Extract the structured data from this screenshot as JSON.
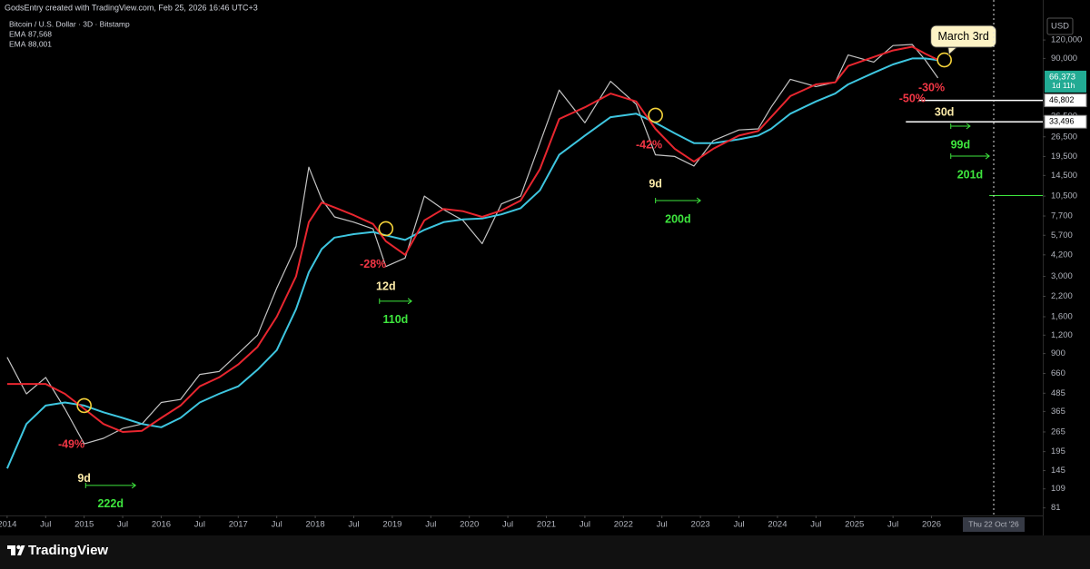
{
  "header": {
    "credit": "GodsEntry created with TradingView.com, Feb 25, 2026 16:46 UTC+3",
    "symbol": "Bitcoin / U.S. Dollar · 3D · Bitstamp",
    "currency": "USD",
    "brand": "TradingView"
  },
  "chart_data": {
    "type": "line",
    "log_scale": true,
    "grid": false,
    "xlim": [
      "2013-11-28",
      "2027-06-11"
    ],
    "ylim": [
      72,
      224000
    ],
    "x": [
      "2014-01",
      "2014-04",
      "2014-07",
      "2014-10",
      "2015-01",
      "2015-04",
      "2015-07",
      "2015-10",
      "2016-01",
      "2016-04",
      "2016-07",
      "2016-10",
      "2017-01",
      "2017-04",
      "2017-07",
      "2017-10",
      "2017-12",
      "2018-02",
      "2018-04",
      "2018-07",
      "2018-10",
      "2018-12",
      "2019-03",
      "2019-06",
      "2019-09",
      "2019-12",
      "2020-03",
      "2020-06",
      "2020-09",
      "2020-12",
      "2021-03",
      "2021-07",
      "2021-11",
      "2022-03",
      "2022-06",
      "2022-09",
      "2022-12",
      "2023-03",
      "2023-07",
      "2023-10",
      "2023-12",
      "2024-03",
      "2024-07",
      "2024-10",
      "2024-12",
      "2025-04",
      "2025-07",
      "2025-10",
      "2025-12",
      "2026-02"
    ],
    "series": [
      {
        "color": "#c4c4c4",
        "values": [
          850,
          480,
          620,
          380,
          220,
          240,
          280,
          300,
          420,
          440,
          650,
          680,
          900,
          1200,
          2500,
          4800,
          16500,
          10000,
          7600,
          7000,
          6300,
          3500,
          4000,
          10500,
          8500,
          7200,
          5000,
          9300,
          10500,
          24000,
          55000,
          33000,
          63000,
          44000,
          20000,
          19500,
          16800,
          25000,
          29500,
          30000,
          42000,
          65000,
          58000,
          62000,
          95000,
          85000,
          110000,
          112000,
          88000,
          66373
        ]
      },
      {
        "name": "EMA",
        "last": {
          "value": 87568,
          "label": "87,568"
        },
        "color": "#3ec6e0",
        "values": [
          150,
          300,
          400,
          420,
          400,
          360,
          330,
          300,
          285,
          330,
          420,
          480,
          540,
          700,
          950,
          1800,
          3200,
          4600,
          5500,
          5800,
          6000,
          5700,
          5300,
          6200,
          7000,
          7300,
          7400,
          7900,
          8700,
          11500,
          20000,
          27000,
          36000,
          38000,
          33000,
          28000,
          24000,
          24000,
          25500,
          27000,
          30000,
          38000,
          46000,
          52000,
          60000,
          72000,
          82000,
          90000,
          90000,
          87568
        ]
      },
      {
        "name": "EMA",
        "last": {
          "value": 88001,
          "label": "88,001"
        },
        "color": "#e8262f",
        "values": [
          560,
          560,
          560,
          480,
          380,
          300,
          265,
          270,
          330,
          400,
          540,
          620,
          760,
          1000,
          1600,
          3000,
          7000,
          9500,
          8800,
          7800,
          6800,
          5200,
          4200,
          7200,
          8600,
          8300,
          7600,
          8400,
          9800,
          16000,
          35000,
          42000,
          52000,
          46000,
          30000,
          22000,
          18000,
          22000,
          27000,
          29000,
          36000,
          50000,
          60000,
          62000,
          80000,
          92000,
          102000,
          108000,
          97000,
          88001
        ]
      }
    ],
    "xticks": [
      {
        "value": "2014-01",
        "label": "2014"
      },
      {
        "value": "2014-07",
        "label": "Jul"
      },
      {
        "value": "2015-01",
        "label": "2015"
      },
      {
        "value": "2015-07",
        "label": "Jul"
      },
      {
        "value": "2016-01",
        "label": "2016"
      },
      {
        "value": "2016-07",
        "label": "Jul"
      },
      {
        "value": "2017-01",
        "label": "2017"
      },
      {
        "value": "2017-07",
        "label": "Jul"
      },
      {
        "value": "2018-01",
        "label": "2018"
      },
      {
        "value": "2018-07",
        "label": "Jul"
      },
      {
        "value": "2019-01",
        "label": "2019"
      },
      {
        "value": "2019-07",
        "label": "Jul"
      },
      {
        "value": "2020-01",
        "label": "2020"
      },
      {
        "value": "2020-07",
        "label": "Jul"
      },
      {
        "value": "2021-01",
        "label": "2021"
      },
      {
        "value": "2021-07",
        "label": "Jul"
      },
      {
        "value": "2022-01",
        "label": "2022"
      },
      {
        "value": "2022-07",
        "label": "Jul"
      },
      {
        "value": "2023-01",
        "label": "2023"
      },
      {
        "value": "2023-07",
        "label": "Jul"
      },
      {
        "value": "2024-01",
        "label": "2024"
      },
      {
        "value": "2024-07",
        "label": "Jul"
      },
      {
        "value": "2025-01",
        "label": "2025"
      },
      {
        "value": "2025-07",
        "label": "Jul"
      },
      {
        "value": "2026-01",
        "label": "2026"
      }
    ],
    "yticks": [
      {
        "value": 120000,
        "label": "120,000"
      },
      {
        "value": 90000,
        "label": "90,000"
      },
      {
        "value": 36500,
        "label": "36,500"
      },
      {
        "value": 26500,
        "label": "26,500"
      },
      {
        "value": 19500,
        "label": "19,500"
      },
      {
        "value": 14500,
        "label": "14,500"
      },
      {
        "value": 10500,
        "label": "10,500"
      },
      {
        "value": 7700,
        "label": "7,700"
      },
      {
        "value": 5700,
        "label": "5,700"
      },
      {
        "value": 4200,
        "label": "4,200"
      },
      {
        "value": 3000,
        "label": "3,000"
      },
      {
        "value": 2200,
        "label": "2,200"
      },
      {
        "value": 1600,
        "label": "1,600"
      },
      {
        "value": 1200,
        "label": "1,200"
      },
      900,
      660,
      485,
      365,
      265,
      195,
      145,
      109,
      81
    ],
    "last_price": {
      "value": 66373,
      "label": "66,373",
      "countdown": "1d 11h",
      "color": "#22ab94"
    },
    "levels": [
      {
        "value": 46802,
        "label": "46,802",
        "x0": "2025-11"
      },
      {
        "value": 33496,
        "label": "33,496",
        "x0": "2025-09"
      }
    ],
    "markers": [
      {
        "x": "2015-01",
        "y": 400
      },
      {
        "x": "2018-12",
        "y": 6320
      },
      {
        "x": "2022-06",
        "y": 37100
      },
      {
        "x": "2026-03",
        "y": 87900,
        "label": "March 3rd"
      }
    ],
    "annotations": [
      {
        "text": "-49%",
        "x": "2014-11",
        "y": 216,
        "color": "#f23645"
      },
      {
        "text": "9d",
        "x": "2015-01",
        "y": 127,
        "color": "#fbeaa8"
      },
      {
        "text": "-28%",
        "x": "2018-10",
        "y": 3590,
        "color": "#f23645"
      },
      {
        "text": "12d",
        "x": "2018-12",
        "y": 2550,
        "color": "#fbeaa8"
      },
      {
        "text": "-42%",
        "x": "2022-05",
        "y": 23200,
        "color": "#f23645"
      },
      {
        "text": "9d",
        "x": "2022-06",
        "y": 12650,
        "color": "#fbeaa8"
      },
      {
        "text": "-50%",
        "x": "2025-10",
        "y": 47800,
        "color": "#f23645"
      },
      {
        "text": "-30%",
        "x": "2026-01",
        "y": 56600,
        "color": "#f23645"
      },
      {
        "text": "30d",
        "x": "2026-03",
        "y": 38600,
        "color": "#fbeaa8"
      }
    ],
    "ranges": [
      {
        "x0": "2015-01-08",
        "x1": "2015-09",
        "y": 115,
        "label": "222d"
      },
      {
        "x0": "2018-11",
        "x1": "2019-04",
        "y": 2040,
        "label": "110d"
      },
      {
        "x0": "2022-06",
        "x1": "2023-01",
        "y": 9800,
        "label": "200d"
      },
      {
        "x0": "2026-04",
        "x1": "2026-07",
        "y": 31300,
        "label": "99d"
      },
      {
        "x0": "2026-04",
        "x1": "2026-10",
        "y": 19600,
        "label": "201d"
      },
      {
        "x0": "2026-10",
        "x1": "2027-06-11",
        "y": 10600
      }
    ],
    "range_color": "#3ee63e",
    "crosshair": {
      "x": "2026-10-22",
      "label": "Thu 22 Oct '26"
    }
  }
}
